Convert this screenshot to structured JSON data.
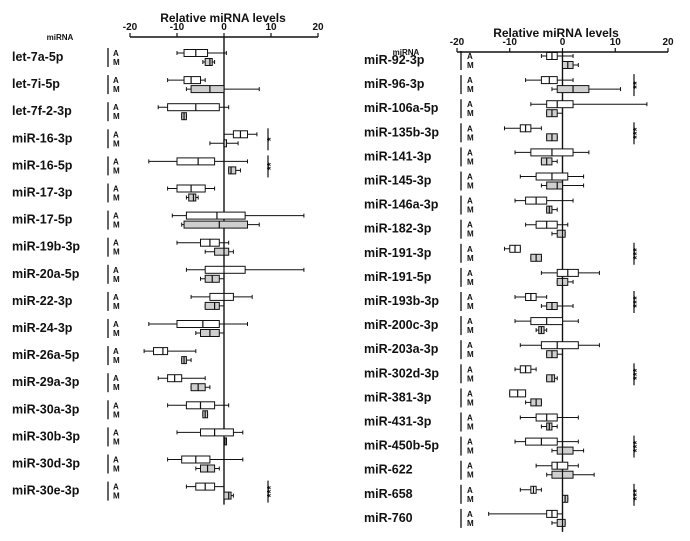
{
  "chart_data": [
    {
      "type": "box",
      "title": "Relative miRNA levels",
      "row_header": "miRNA",
      "xlim": [
        -20,
        20
      ],
      "x_ticks": [
        "-20",
        "-10",
        "0",
        "10",
        "20"
      ],
      "group_labels": [
        "A",
        "M"
      ],
      "colors": {
        "A": "#ffffff",
        "M": "#cfcfcf",
        "stroke": "#111111"
      },
      "rows": [
        {
          "label": "let-7a-5p",
          "A": {
            "whisker": [
              -10,
              0.5
            ],
            "box": [
              -8.5,
              -3.5
            ],
            "median": -6
          },
          "M": {
            "whisker": [
              -4.5,
              -2
            ],
            "box": [
              -4,
              -2.5
            ],
            "median": -3
          }
        },
        {
          "label": "let-7i-5p",
          "A": {
            "whisker": [
              -12,
              -4
            ],
            "box": [
              -8.5,
              -5
            ],
            "median": -7
          },
          "M": {
            "whisker": [
              -8,
              7.5
            ],
            "box": [
              -7,
              0
            ],
            "median": -3
          }
        },
        {
          "label": "let-7f-2-3p",
          "A": {
            "whisker": [
              -14,
              1
            ],
            "box": [
              -12,
              -1
            ],
            "median": -6
          },
          "M": {
            "whisker": [
              -9,
              -8
            ],
            "box": [
              -9,
              -8
            ],
            "median": -8.5
          }
        },
        {
          "label": "miR-16-3p",
          "A": {
            "whisker": [
              0,
              7
            ],
            "box": [
              2,
              5
            ],
            "median": 3.5
          },
          "M": {
            "whisker": [
              -3,
              3
            ],
            "box": [
              0,
              0
            ],
            "median": 0
          }
        },
        {
          "label": "miR-16-5p",
          "A": {
            "whisker": [
              -16,
              5
            ],
            "box": [
              -10,
              -2
            ],
            "median": -5.5
          },
          "M": {
            "whisker": [
              1,
              3.5
            ],
            "box": [
              1,
              2.5
            ],
            "median": 1.5
          }
        },
        {
          "label": "miR-17-3p",
          "A": {
            "whisker": [
              -12,
              -2
            ],
            "box": [
              -10,
              -4
            ],
            "median": -7
          },
          "M": {
            "whisker": [
              -8,
              -5.5
            ],
            "box": [
              -7.5,
              -6
            ],
            "median": -6.5
          }
        },
        {
          "label": "miR-17-5p",
          "A": {
            "whisker": [
              -11,
              17
            ],
            "box": [
              -8,
              4.5
            ],
            "median": -1.5
          },
          "M": {
            "whisker": [
              -9,
              7.5
            ],
            "box": [
              -8.5,
              5
            ],
            "median": -1
          }
        },
        {
          "label": "miR-19b-3p",
          "A": {
            "whisker": [
              -10,
              1
            ],
            "box": [
              -5,
              -1
            ],
            "median": -3
          },
          "M": {
            "whisker": [
              -4,
              2
            ],
            "box": [
              -2,
              1
            ],
            "median": 0
          }
        },
        {
          "label": "miR-20a-5p",
          "A": {
            "whisker": [
              -8,
              17
            ],
            "box": [
              -4,
              4.5
            ],
            "median": 0
          },
          "M": {
            "whisker": [
              -5,
              0
            ],
            "box": [
              -4,
              -1
            ],
            "median": -2.5
          }
        },
        {
          "label": "miR-22-3p",
          "A": {
            "whisker": [
              -7,
              6
            ],
            "box": [
              -3,
              2
            ],
            "median": 0
          },
          "M": {
            "whisker": [
              -4,
              0
            ],
            "box": [
              -4,
              -1
            ],
            "median": -2
          }
        },
        {
          "label": "miR-24-3p",
          "A": {
            "whisker": [
              -16,
              5
            ],
            "box": [
              -10,
              -1
            ],
            "median": -4.5
          },
          "M": {
            "whisker": [
              -6,
              0
            ],
            "box": [
              -5,
              -1
            ],
            "median": -3
          }
        },
        {
          "label": "miR-26a-5p",
          "A": {
            "whisker": [
              -17,
              -6
            ],
            "box": [
              -15,
              -12
            ],
            "median": -13
          },
          "M": {
            "whisker": [
              -9,
              -7
            ],
            "box": [
              -9,
              -8
            ],
            "median": -8.5
          }
        },
        {
          "label": "miR-29a-3p",
          "A": {
            "whisker": [
              -14,
              -4
            ],
            "box": [
              -12,
              -9
            ],
            "median": -10.5
          },
          "M": {
            "whisker": [
              -7,
              -3
            ],
            "box": [
              -7,
              -4
            ],
            "median": -5.5
          }
        },
        {
          "label": "miR-30a-3p",
          "A": {
            "whisker": [
              -12,
              1
            ],
            "box": [
              -8,
              -2
            ],
            "median": -5
          },
          "M": {
            "whisker": [
              -4.5,
              -3.5
            ],
            "box": [
              -4.5,
              -3.5
            ],
            "median": -4
          }
        },
        {
          "label": "miR-30b-3p",
          "A": {
            "whisker": [
              -10,
              4
            ],
            "box": [
              -5,
              2
            ],
            "median": -2
          },
          "M": {
            "whisker": [
              0,
              0.5
            ],
            "box": [
              0,
              0.5
            ],
            "median": 0.2
          }
        },
        {
          "label": "miR-30d-3p",
          "A": {
            "whisker": [
              -12,
              4
            ],
            "box": [
              -9,
              -3
            ],
            "median": -6
          },
          "M": {
            "whisker": [
              -6,
              -1
            ],
            "box": [
              -5,
              -2
            ],
            "median": -3.5
          }
        },
        {
          "label": "miR-30e-3p",
          "A": {
            "whisker": [
              -8,
              0
            ],
            "box": [
              -6,
              -2
            ],
            "median": -4
          },
          "M": {
            "whisker": [
              0,
              2
            ],
            "box": [
              0,
              1.5
            ],
            "median": 1
          }
        }
      ],
      "significance": [
        {
          "rows": [
            "miR-16-3p",
            "miR-16-3p"
          ],
          "label": "*"
        },
        {
          "rows": [
            "miR-16-5p",
            "miR-16-5p"
          ],
          "label": "**"
        },
        {
          "rows": [
            "miR-30e-3p",
            "miR-30e-3p"
          ],
          "label": "***"
        }
      ]
    },
    {
      "type": "box",
      "title": "Relative miRNA levels",
      "row_header": "miRNA",
      "xlim": [
        -20,
        20
      ],
      "x_ticks": [
        "-20",
        "-10",
        "0",
        "10",
        "20"
      ],
      "group_labels": [
        "A",
        "M"
      ],
      "colors": {
        "A": "#ffffff",
        "M": "#cfcfcf",
        "stroke": "#111111"
      },
      "rows": [
        {
          "label": "miR-92-3p",
          "A": {
            "whisker": [
              -4,
              2
            ],
            "box": [
              -3,
              -1
            ],
            "median": -2
          },
          "M": {
            "whisker": [
              0,
              3
            ],
            "box": [
              0,
              2
            ],
            "median": 1
          }
        },
        {
          "label": "miR-96-3p",
          "A": {
            "whisker": [
              -7,
              2
            ],
            "box": [
              -4,
              -1
            ],
            "median": -2.5
          },
          "M": {
            "whisker": [
              -2,
              11
            ],
            "box": [
              -1,
              5
            ],
            "median": 2
          }
        },
        {
          "label": "miR-106a-5p",
          "A": {
            "whisker": [
              -6,
              16
            ],
            "box": [
              -3,
              2
            ],
            "median": -1
          },
          "M": {
            "whisker": [
              -3,
              0
            ],
            "box": [
              -3,
              -1
            ],
            "median": -2
          }
        },
        {
          "label": "miR-135b-3p",
          "A": {
            "whisker": [
              -11,
              -4
            ],
            "box": [
              -8,
              -6
            ],
            "median": -7
          },
          "M": {
            "whisker": [
              -3,
              -1
            ],
            "box": [
              -3,
              -1
            ],
            "median": -2
          }
        },
        {
          "label": "miR-141-3p",
          "A": {
            "whisker": [
              -9,
              5
            ],
            "box": [
              -6,
              2
            ],
            "median": -2
          },
          "M": {
            "whisker": [
              -4,
              -1
            ],
            "box": [
              -4,
              -2
            ],
            "median": -3
          }
        },
        {
          "label": "miR-145-3p",
          "A": {
            "whisker": [
              -8,
              4
            ],
            "box": [
              -5,
              1
            ],
            "median": -2
          },
          "M": {
            "whisker": [
              -4,
              4
            ],
            "box": [
              -3,
              0
            ],
            "median": -1
          }
        },
        {
          "label": "miR-146a-3p",
          "A": {
            "whisker": [
              -9,
              2
            ],
            "box": [
              -7,
              -3
            ],
            "median": -5
          },
          "M": {
            "whisker": [
              -3,
              -1
            ],
            "box": [
              -3,
              -2
            ],
            "median": -2.5
          }
        },
        {
          "label": "miR-182-3p",
          "A": {
            "whisker": [
              -7,
              1
            ],
            "box": [
              -5,
              -1
            ],
            "median": -3
          },
          "M": {
            "whisker": [
              -2,
              0.5
            ],
            "box": [
              -1,
              0.5
            ],
            "median": 0
          }
        },
        {
          "label": "miR-191-3p",
          "A": {
            "whisker": [
              -11,
              -8
            ],
            "box": [
              -10,
              -8
            ],
            "median": -9
          },
          "M": {
            "whisker": [
              -6,
              -4
            ],
            "box": [
              -6,
              -4
            ],
            "median": -5
          }
        },
        {
          "label": "miR-191-5p",
          "A": {
            "whisker": [
              -4,
              7
            ],
            "box": [
              -1,
              3
            ],
            "median": 1
          },
          "M": {
            "whisker": [
              -1,
              2
            ],
            "box": [
              -1,
              1
            ],
            "median": 0
          }
        },
        {
          "label": "miR-193b-3p",
          "A": {
            "whisker": [
              -9,
              -3
            ],
            "box": [
              -7,
              -5
            ],
            "median": -6
          },
          "M": {
            "whisker": [
              -4,
              2
            ],
            "box": [
              -3,
              -1
            ],
            "median": -2
          }
        },
        {
          "label": "miR-200c-3p",
          "A": {
            "whisker": [
              -9,
              3
            ],
            "box": [
              -6,
              0
            ],
            "median": -3
          },
          "M": {
            "whisker": [
              -5,
              -3
            ],
            "box": [
              -4.5,
              -3.5
            ],
            "median": -4
          }
        },
        {
          "label": "miR-203a-3p",
          "A": {
            "whisker": [
              -8,
              7
            ],
            "box": [
              -4,
              3
            ],
            "median": -1
          },
          "M": {
            "whisker": [
              -3,
              0
            ],
            "box": [
              -3,
              -1
            ],
            "median": -2
          }
        },
        {
          "label": "miR-302d-3p",
          "A": {
            "whisker": [
              -9,
              -5
            ],
            "box": [
              -8,
              -6
            ],
            "median": -7
          },
          "M": {
            "whisker": [
              -3,
              -1
            ],
            "box": [
              -3,
              -1.5
            ],
            "median": -2
          }
        },
        {
          "label": "miR-381-3p",
          "A": {
            "whisker": [
              -10,
              -7
            ],
            "box": [
              -10,
              -7
            ],
            "median": -8.5
          },
          "M": {
            "whisker": [
              -7,
              -4
            ],
            "box": [
              -6,
              -4
            ],
            "median": -5
          }
        },
        {
          "label": "miR-431-3p",
          "A": {
            "whisker": [
              -8,
              3
            ],
            "box": [
              -5,
              -1
            ],
            "median": -3
          },
          "M": {
            "whisker": [
              -4,
              -1
            ],
            "box": [
              -3,
              -2
            ],
            "median": -2.5
          }
        },
        {
          "label": "miR-450b-5p",
          "A": {
            "whisker": [
              -9,
              3
            ],
            "box": [
              -7,
              -1
            ],
            "median": -4
          },
          "M": {
            "whisker": [
              -2,
              4
            ],
            "box": [
              -1,
              2
            ],
            "median": 0
          }
        },
        {
          "label": "miR-622",
          "A": {
            "whisker": [
              -5,
              3
            ],
            "box": [
              -2,
              1
            ],
            "median": -1
          },
          "M": {
            "whisker": [
              -3,
              6
            ],
            "box": [
              -2,
              2
            ],
            "median": 0
          }
        },
        {
          "label": "miR-658",
          "A": {
            "whisker": [
              -8,
              -4
            ],
            "box": [
              -6,
              -5
            ],
            "median": -5.5
          },
          "M": {
            "whisker": [
              0,
              1
            ],
            "box": [
              0,
              1
            ],
            "median": 0.5
          }
        },
        {
          "label": "miR-760",
          "A": {
            "whisker": [
              -14,
              0
            ],
            "box": [
              -3,
              -1
            ],
            "median": -2
          },
          "M": {
            "whisker": [
              -2,
              0.5
            ],
            "box": [
              -1,
              0.5
            ],
            "median": 0
          }
        }
      ],
      "significance": [
        {
          "rows": [
            "miR-96-3p",
            "miR-96-3p"
          ],
          "label": "**"
        },
        {
          "rows": [
            "miR-135b-3p",
            "miR-135b-3p"
          ],
          "label": "***"
        },
        {
          "rows": [
            "miR-191-3p",
            "miR-191-3p"
          ],
          "label": "***"
        },
        {
          "rows": [
            "miR-193b-3p",
            "miR-193b-3p"
          ],
          "label": "***"
        },
        {
          "rows": [
            "miR-302d-3p",
            "miR-302d-3p"
          ],
          "label": "***"
        },
        {
          "rows": [
            "miR-450b-5p",
            "miR-450b-5p"
          ],
          "label": "***"
        },
        {
          "rows": [
            "miR-658",
            "miR-658"
          ],
          "label": "***"
        }
      ]
    }
  ]
}
